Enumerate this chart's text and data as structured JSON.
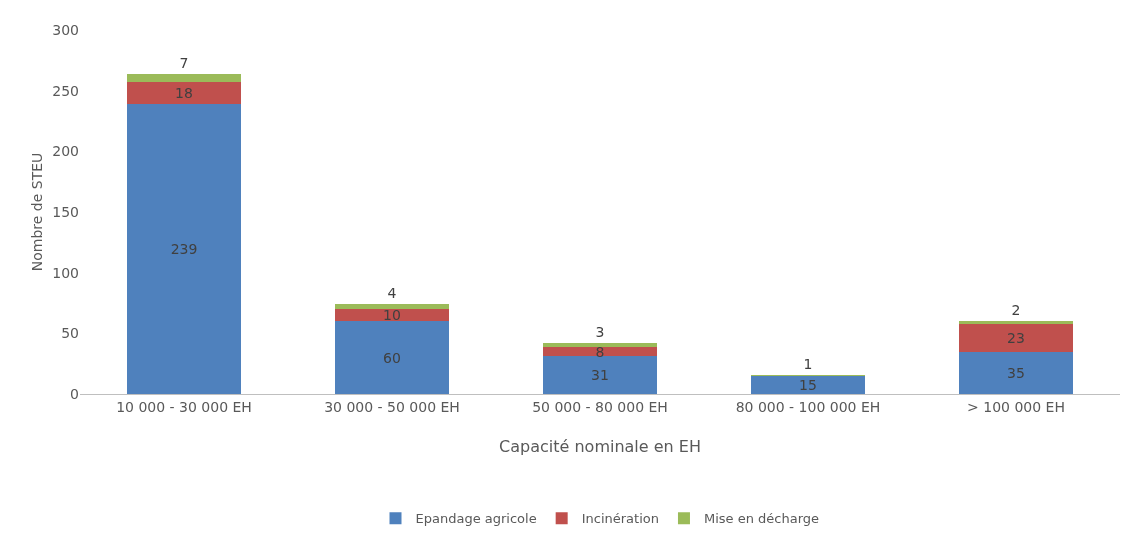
{
  "chart_data": {
    "type": "bar",
    "stacked": true,
    "xlabel": "Capacité nominale en EH",
    "ylabel": "Nombre de STEU",
    "categories": [
      "10 000 - 30 000 EH",
      "30 000 - 50 000 EH",
      "50 000 - 80 000 EH",
      "80 000 - 100 000 EH",
      "> 100 000 EH"
    ],
    "series": [
      {
        "name": "Epandage agricole",
        "color": "#4f81bd",
        "values": [
          239,
          60,
          31,
          15,
          35
        ],
        "value_labels": [
          "239",
          "60",
          "31",
          "15",
          "35"
        ]
      },
      {
        "name": "Incinération",
        "color": "#c0504d",
        "values": [
          18,
          10,
          8,
          0,
          23
        ],
        "value_labels": [
          "18",
          "10",
          "8",
          null,
          "23"
        ]
      },
      {
        "name": "Mise en décharge",
        "color": "#9bbb59",
        "values": [
          7,
          4,
          3,
          1,
          2
        ],
        "value_labels": [
          "7",
          "4",
          "3",
          "1",
          "2"
        ]
      }
    ],
    "ylim": [
      0,
      300
    ],
    "yticks": [
      0,
      50,
      100,
      150,
      200,
      250,
      300
    ],
    "grid": false,
    "legend": "bottom"
  }
}
